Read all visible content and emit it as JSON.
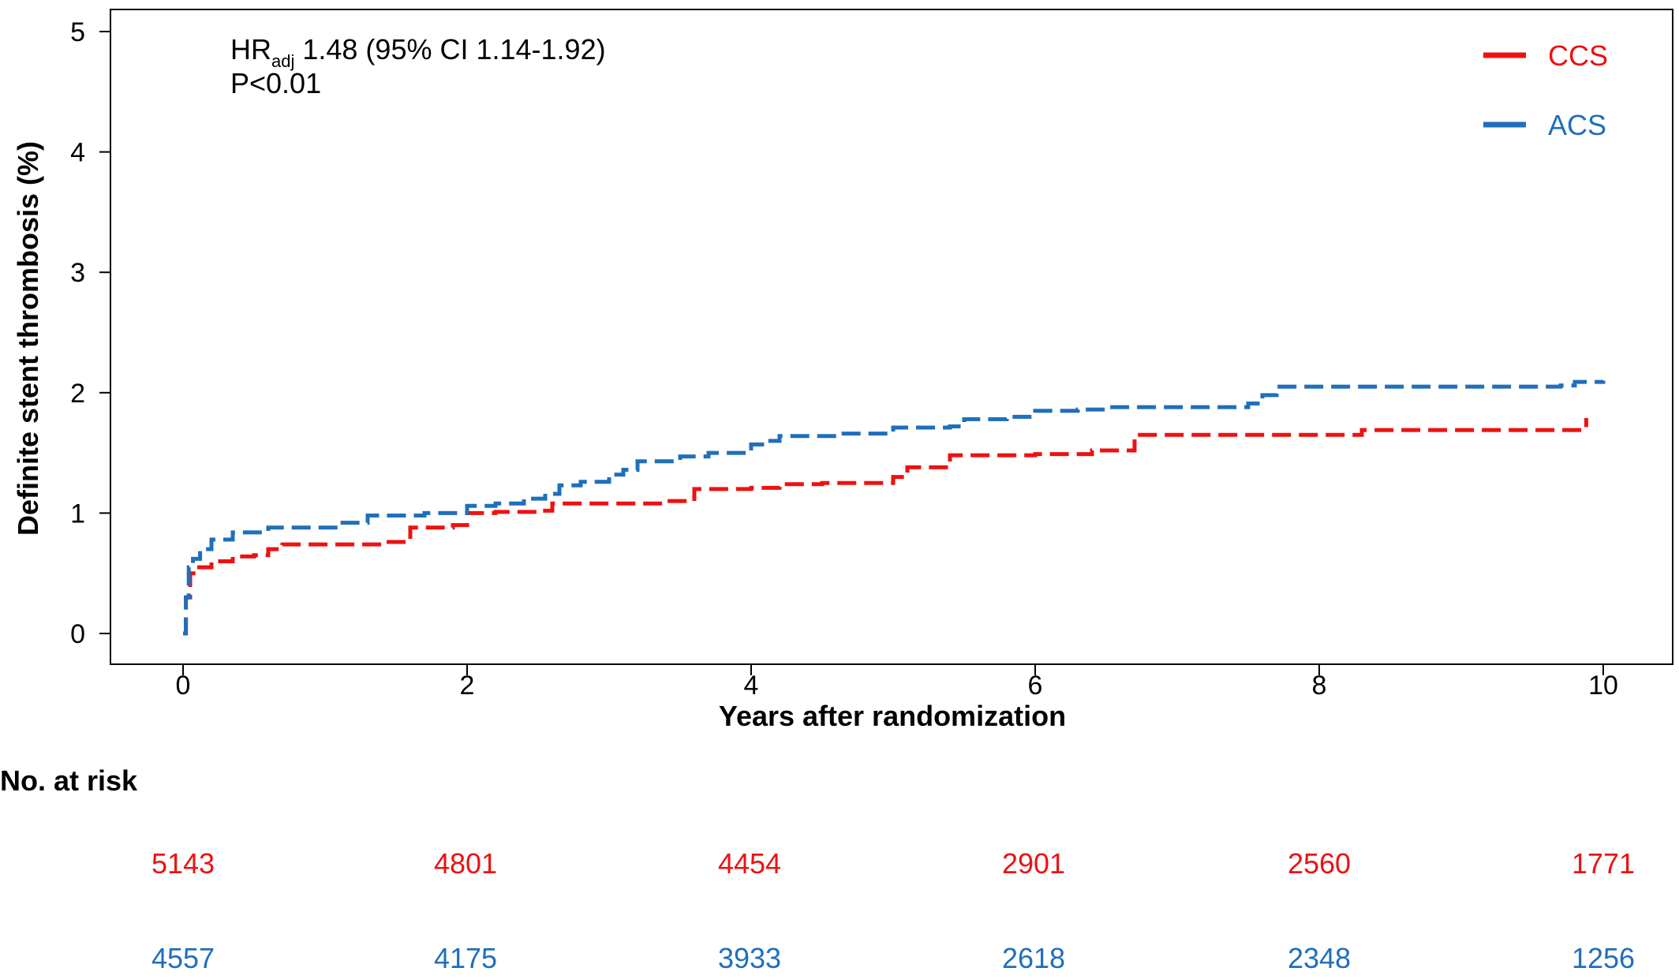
{
  "chart_data": {
    "type": "line",
    "xlabel": "Years after randomization",
    "ylabel": "Definite stent thrombosis (%)",
    "xlim": [
      0,
      10
    ],
    "ylim": [
      0,
      5
    ],
    "x_ticks": [
      "0",
      "2",
      "4",
      "6",
      "8",
      "10"
    ],
    "y_ticks": [
      "0",
      "1",
      "2",
      "3",
      "4",
      "5"
    ],
    "grid": false,
    "legend_position": "top-right",
    "annotation": {
      "hr_main": "HR",
      "hr_sub": "adj",
      "hr_rest": " 1.48 (95% CI 1.14-1.92)",
      "p_value": "P<0.01"
    },
    "series": [
      {
        "name": "CCS",
        "color": "#ee1111",
        "x": [
          0,
          0.02,
          0.05,
          0.1,
          0.2,
          0.35,
          0.5,
          0.6,
          0.7,
          1.0,
          1.4,
          1.6,
          1.9,
          2.0,
          2.2,
          2.5,
          2.6,
          3.0,
          3.4,
          3.6,
          4.0,
          4.2,
          4.5,
          5.0,
          5.1,
          5.4,
          6.0,
          6.4,
          6.7,
          7.5,
          8.3,
          9.0,
          9.8,
          9.88
        ],
        "y": [
          0,
          0.3,
          0.5,
          0.55,
          0.6,
          0.64,
          0.65,
          0.7,
          0.74,
          0.74,
          0.76,
          0.88,
          0.9,
          1.0,
          1.01,
          1.02,
          1.08,
          1.08,
          1.1,
          1.2,
          1.21,
          1.24,
          1.25,
          1.3,
          1.38,
          1.48,
          1.49,
          1.52,
          1.65,
          1.65,
          1.69,
          1.69,
          1.69,
          1.79
        ]
      },
      {
        "name": "ACS",
        "color": "#1f6fbb",
        "x": [
          0,
          0.02,
          0.04,
          0.07,
          0.12,
          0.2,
          0.35,
          0.6,
          0.9,
          1.1,
          1.3,
          1.7,
          2.0,
          2.2,
          2.4,
          2.55,
          2.65,
          2.8,
          3.0,
          3.1,
          3.2,
          3.5,
          3.7,
          4.0,
          4.1,
          4.2,
          4.6,
          5.0,
          5.4,
          5.5,
          5.8,
          6.0,
          6.3,
          6.5,
          7.0,
          7.5,
          7.6,
          7.7,
          8.5,
          9.7,
          9.8,
          10.0
        ],
        "y": [
          0,
          0.3,
          0.55,
          0.62,
          0.7,
          0.78,
          0.84,
          0.88,
          0.88,
          0.92,
          0.98,
          1.0,
          1.06,
          1.08,
          1.12,
          1.16,
          1.23,
          1.26,
          1.32,
          1.36,
          1.43,
          1.47,
          1.5,
          1.57,
          1.6,
          1.64,
          1.66,
          1.71,
          1.72,
          1.78,
          1.8,
          1.85,
          1.86,
          1.88,
          1.88,
          1.91,
          1.98,
          2.05,
          2.05,
          2.06,
          2.09,
          2.1
        ]
      }
    ],
    "risk_table": {
      "title": "No. at risk",
      "rows": [
        {
          "name": "CCS",
          "color": "#ee1111",
          "values": [
            "5143",
            "4801",
            "4454",
            "2901",
            "2560",
            "1771"
          ]
        },
        {
          "name": "ACS",
          "color": "#1f6fbb",
          "values": [
            "4557",
            "4175",
            "3933",
            "2618",
            "2348",
            "1256"
          ]
        }
      ]
    }
  }
}
